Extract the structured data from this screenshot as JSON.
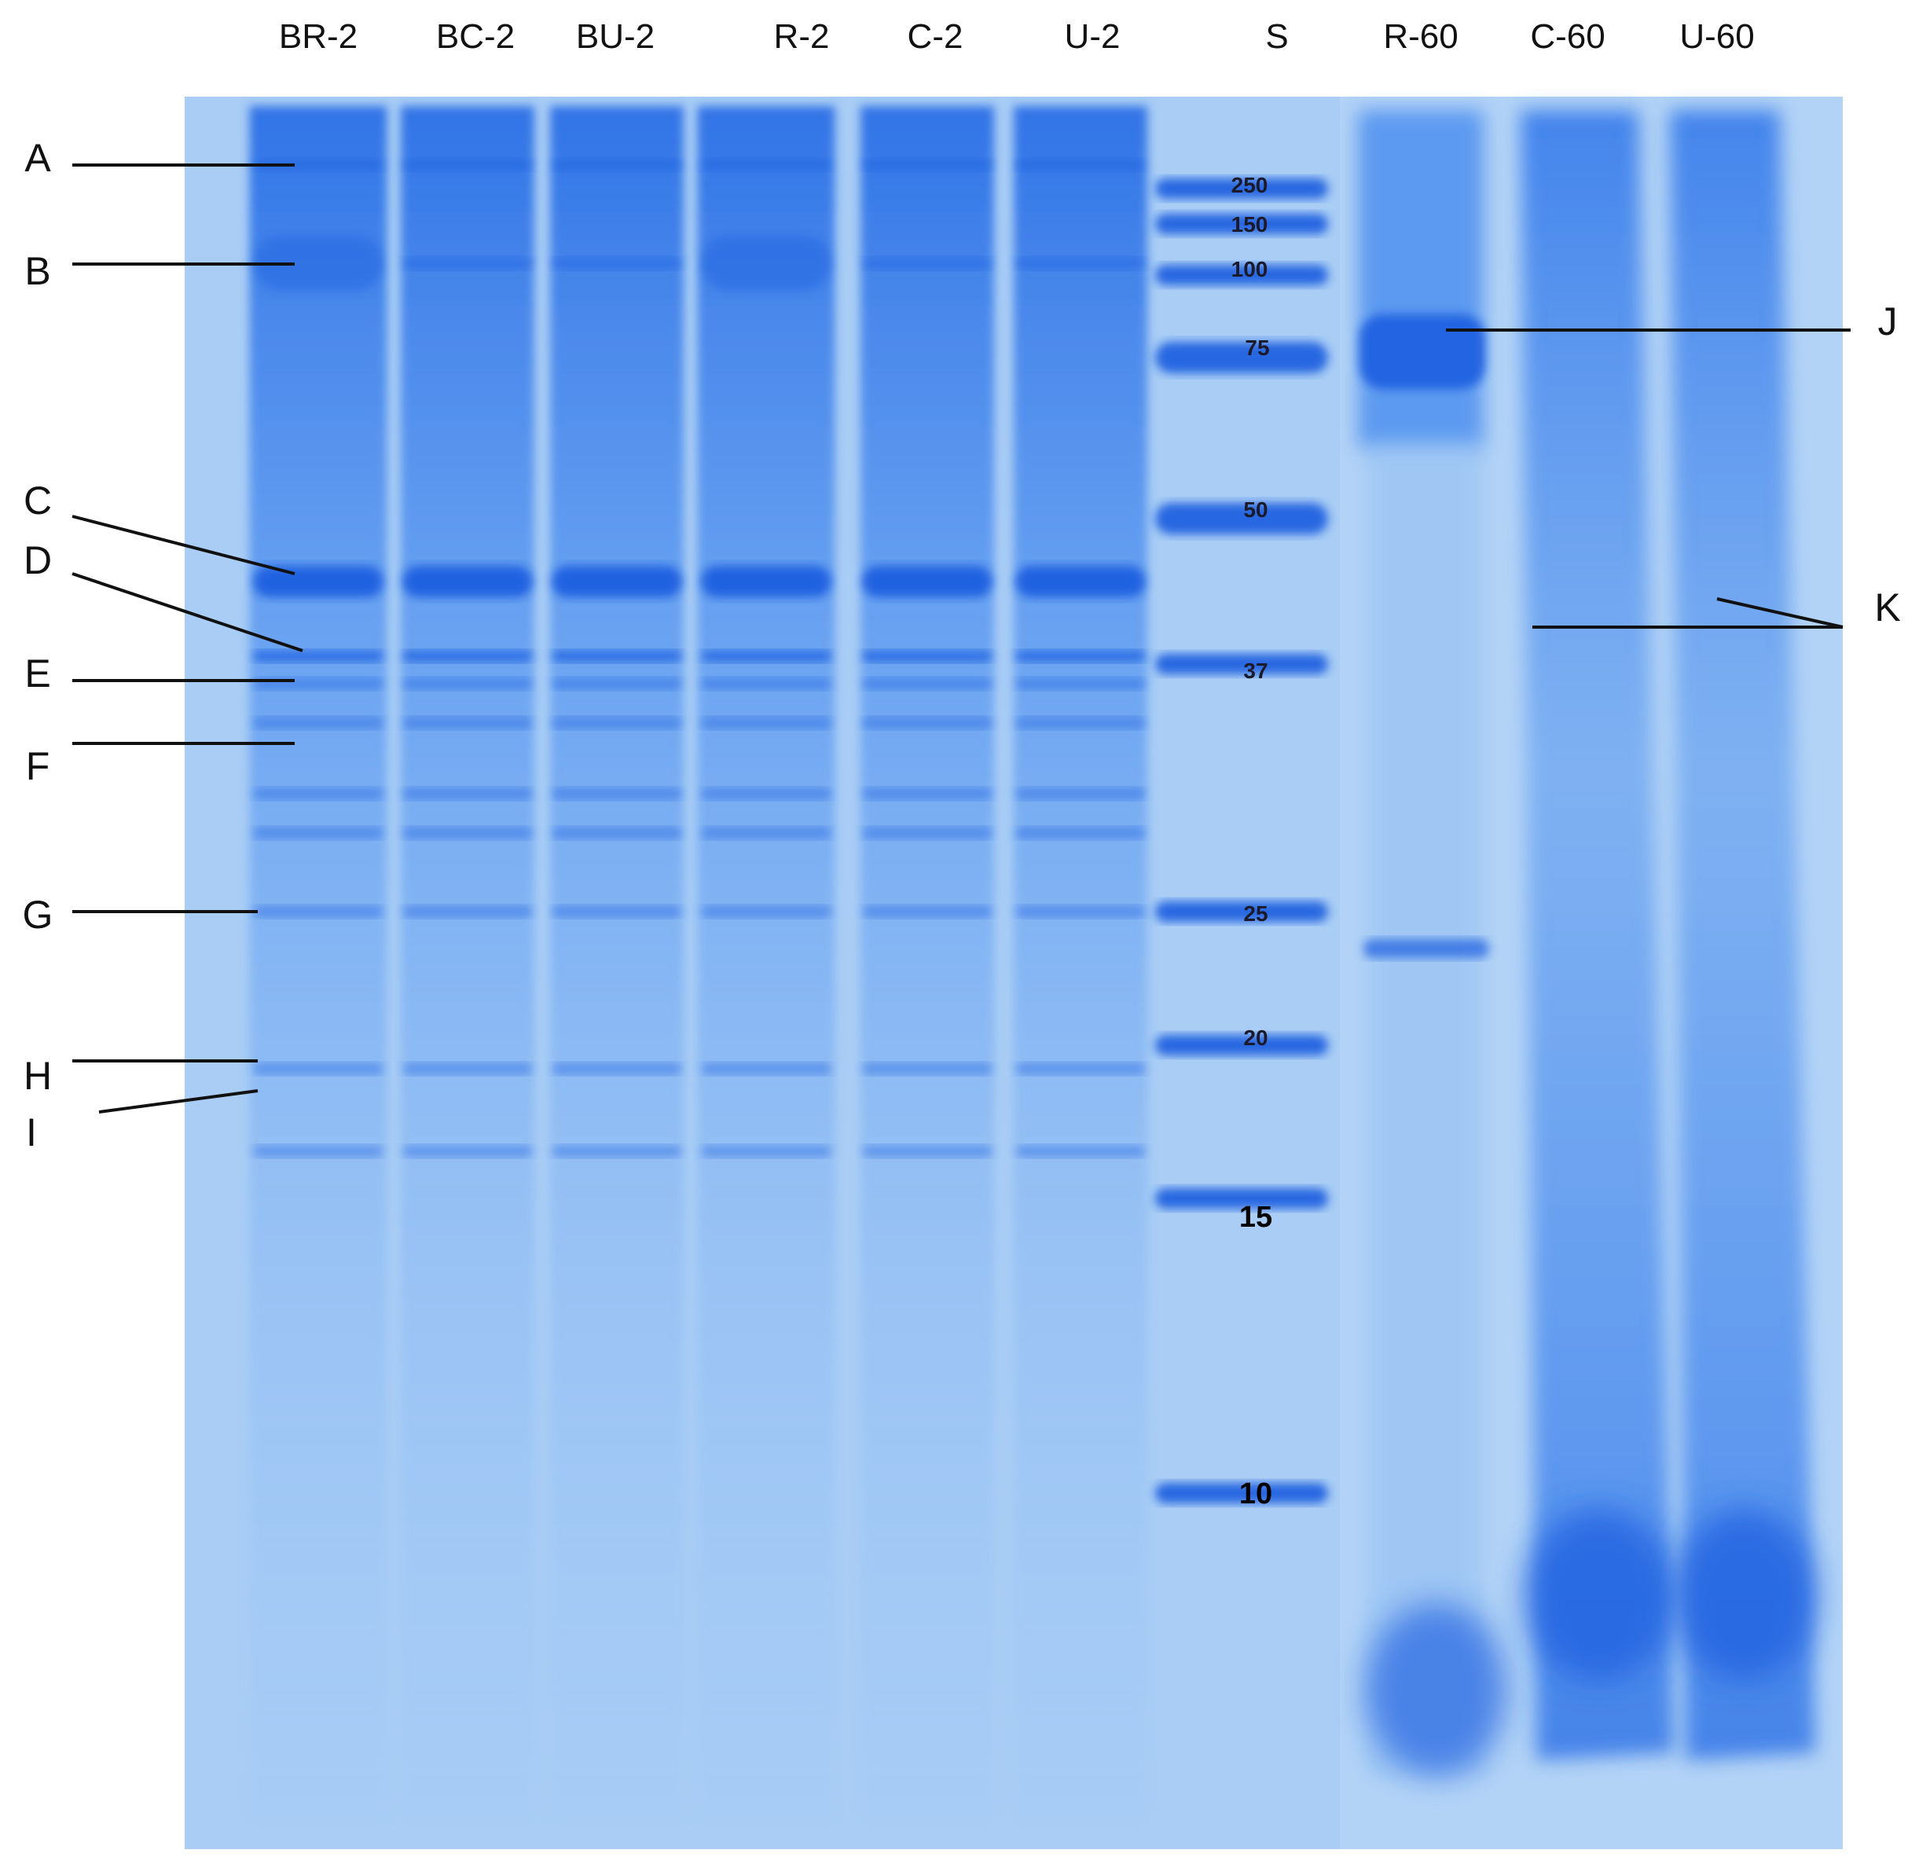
{
  "figure": {
    "lane_labels": [
      "BR-2",
      "BC-2",
      "BU-2",
      "R-2",
      "C-2",
      "U-2",
      "S",
      "R-60",
      "C-60",
      "U-60"
    ],
    "marker_labels": [
      "250",
      "150",
      "100",
      "75",
      "50",
      "37",
      "25",
      "20",
      "15",
      "10"
    ],
    "band_labels": [
      "A",
      "B",
      "C",
      "D",
      "E",
      "F",
      "G",
      "H",
      "I",
      "J",
      "K"
    ]
  },
  "colors": {
    "gel_background": "#a9cdf5",
    "band_dark": "#1f5fe0",
    "band_mid": "#3f86ee",
    "smear": "#5a9cf0",
    "annotation_line": "#111111"
  }
}
